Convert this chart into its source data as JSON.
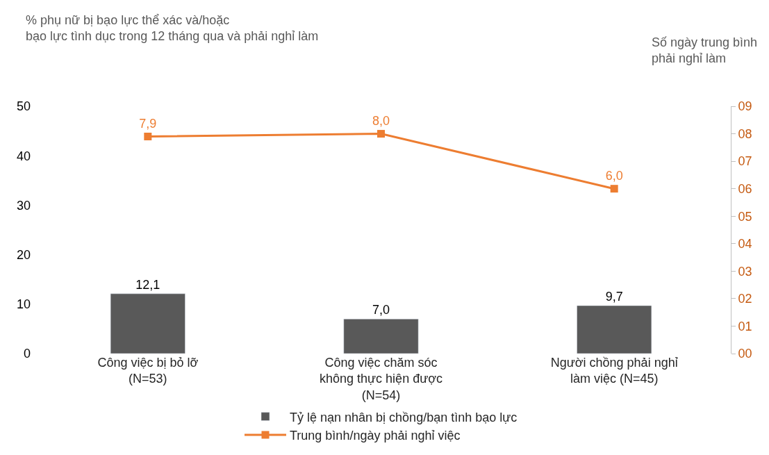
{
  "chart_data": {
    "type": "bar",
    "ylabel": "% phụ nữ bị bạo lực thể xác và/hoặc\nbạo lực tình dục trong 12 tháng qua và phải nghỉ làm",
    "y2label": "Số ngày trung bình\nphải nghỉ làm",
    "categories": [
      "Công việc bị bỏ lỡ\n(N=53)",
      "Công việc chăm sóc\nkhông thực hiện được\n(N=54)",
      "Người chồng phải nghỉ\nlàm việc (N=45)"
    ],
    "series": [
      {
        "name": "Tỷ lệ nạn nhân bị chồng/bạn tình bạo lực",
        "color": "#595959",
        "values": [
          12.1,
          7.0,
          9.7
        ],
        "value_labels": [
          "12,1",
          "7,0",
          "9,7"
        ]
      },
      {
        "name": "Trung bình/ngày phải nghỉ việc",
        "type": "line",
        "axis": "y2",
        "color": "#ED7D31",
        "marker": "square",
        "values": [
          7.9,
          8.0,
          6.0
        ],
        "value_labels": [
          "7,9",
          "8,0",
          "6,0"
        ]
      }
    ],
    "ylim": [
      0,
      50
    ],
    "yticks": [
      0,
      10,
      20,
      30,
      40,
      50
    ],
    "y2lim": [
      0,
      9
    ],
    "y2ticks": [
      {
        "value": 0,
        "label": "00"
      },
      {
        "value": 1,
        "label": "01"
      },
      {
        "value": 2,
        "label": "02"
      },
      {
        "value": 3,
        "label": "03"
      },
      {
        "value": 4,
        "label": "04"
      },
      {
        "value": 5,
        "label": "05"
      },
      {
        "value": 6,
        "label": "06"
      },
      {
        "value": 7,
        "label": "07"
      },
      {
        "value": 8,
        "label": "08"
      },
      {
        "value": 9,
        "label": "09"
      }
    ],
    "legend": "bottom"
  }
}
